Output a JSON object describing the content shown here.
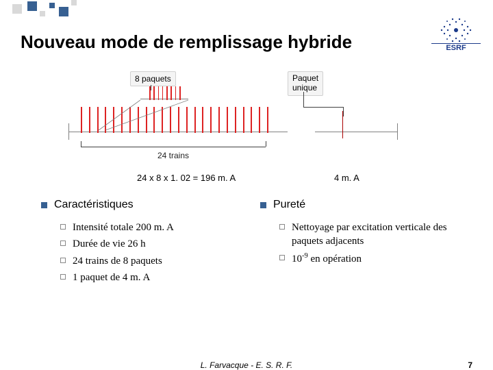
{
  "title": "Nouveau mode de remplissage hybride",
  "logo": {
    "text": "ESRF",
    "color": "#1b3a8a"
  },
  "diagram": {
    "label_8packets": "8 paquets",
    "label_unique": "Paquet\nunique",
    "label_trains": "24 trains",
    "callout_box_bg": "#f4f4f4",
    "tick_color": "#d22",
    "axis_color": "#808080",
    "train_tick_count": 24,
    "packet_tick_count": 8
  },
  "calc": {
    "left": "24 x 8 x 1. 02 = 196 m. A",
    "right": "4 m. A"
  },
  "columns": {
    "left": {
      "heading": "Caractéristiques",
      "items": [
        "Intensité totale 200 m. A",
        "Durée de vie 26 h",
        "24 trains de 8 paquets",
        "1 paquet de 4 m. A"
      ]
    },
    "right": {
      "heading": "Pureté",
      "items": [
        "Nettoyage par excitation verticale des paquets adjacents",
        "10<sup>-9</sup> en opération"
      ]
    }
  },
  "footer": {
    "center": "L. Farvacque - E. S. R. F.",
    "page": "7"
  },
  "colors": {
    "accent": "#376092",
    "text": "#000000",
    "bg": "#ffffff"
  }
}
